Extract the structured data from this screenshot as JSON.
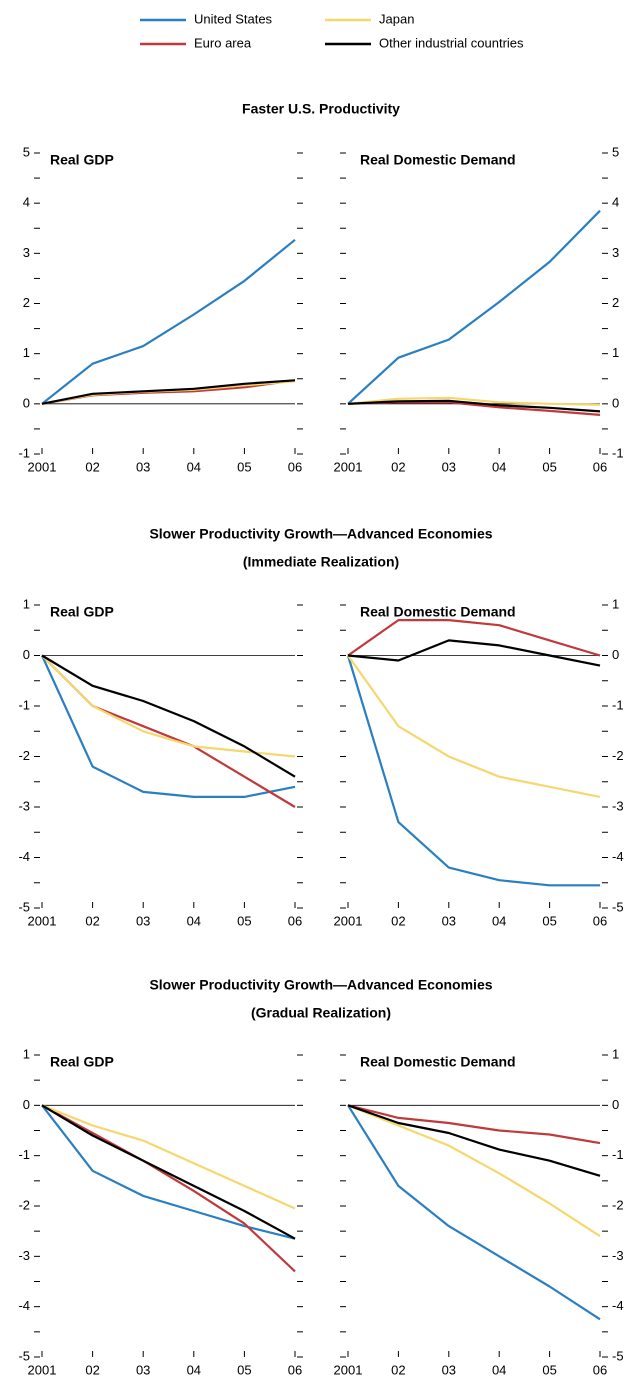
{
  "sections": [
    [
      "Faster U.S. Productivity"
    ],
    [
      "Slower Productivity Growth—Advanced Economies",
      "(Immediate Realization)"
    ],
    [
      "Slower Productivity Growth—Advanced Economies",
      "(Gradual Realization)"
    ]
  ],
  "chart_data": [
    {
      "type": "line",
      "title": "Real GDP",
      "ytick_side": "left",
      "categories": [
        "2001",
        "02",
        "03",
        "04",
        "05",
        "06"
      ],
      "ylim": [
        -1,
        5
      ],
      "yticks": [
        -1,
        0,
        1,
        2,
        3,
        4,
        5
      ],
      "minor_yticks": [
        -0.5,
        0.5,
        1.5,
        2.5,
        3.5,
        4.5
      ],
      "series": [
        {
          "name": "United States",
          "color": "#2a7fc1",
          "values": [
            0,
            0.8,
            1.15,
            1.78,
            2.45,
            3.27
          ]
        },
        {
          "name": "Euro area",
          "color": "#c0393b",
          "values": [
            0,
            0.17,
            0.22,
            0.25,
            0.33,
            0.47
          ]
        },
        {
          "name": "Japan",
          "color": "#f5d76e",
          "values": [
            0,
            0.18,
            0.24,
            0.28,
            0.37,
            0.45
          ]
        },
        {
          "name": "Other industrial countries",
          "color": "#000000",
          "values": [
            0,
            0.2,
            0.25,
            0.3,
            0.4,
            0.47
          ]
        }
      ]
    },
    {
      "type": "line",
      "title": "Real Domestic Demand",
      "ytick_side": "right",
      "categories": [
        "2001",
        "02",
        "03",
        "04",
        "05",
        "06"
      ],
      "ylim": [
        -1,
        5
      ],
      "yticks": [
        -1,
        0,
        1,
        2,
        3,
        4,
        5
      ],
      "minor_yticks": [
        -0.5,
        0.5,
        1.5,
        2.5,
        3.5,
        4.5
      ],
      "series": [
        {
          "name": "United States",
          "color": "#2a7fc1",
          "values": [
            0,
            0.92,
            1.28,
            2.03,
            2.83,
            3.85
          ]
        },
        {
          "name": "Euro area",
          "color": "#c0393b",
          "values": [
            0,
            0.03,
            0.03,
            -0.07,
            -0.14,
            -0.22
          ]
        },
        {
          "name": "Japan",
          "color": "#f5d76e",
          "values": [
            0,
            0.1,
            0.12,
            0.03,
            0,
            -0.02
          ]
        },
        {
          "name": "Other industrial countries",
          "color": "#000000",
          "values": [
            0,
            0.05,
            0.06,
            -0.03,
            -0.08,
            -0.15
          ]
        }
      ]
    },
    {
      "type": "line",
      "title": "Real GDP",
      "ytick_side": "left",
      "categories": [
        "2001",
        "02",
        "03",
        "04",
        "05",
        "06"
      ],
      "ylim": [
        -5,
        1
      ],
      "yticks": [
        -5,
        -4,
        -3,
        -2,
        -1,
        0,
        1
      ],
      "minor_yticks": [
        -4.5,
        -3.5,
        -2.5,
        -1.5,
        -0.5,
        0.5
      ],
      "series": [
        {
          "name": "United States",
          "color": "#2a7fc1",
          "values": [
            0,
            -2.2,
            -2.7,
            -2.8,
            -2.8,
            -2.6
          ]
        },
        {
          "name": "Euro area",
          "color": "#c0393b",
          "values": [
            0,
            -1,
            -1.4,
            -1.8,
            -2.4,
            -3
          ]
        },
        {
          "name": "Japan",
          "color": "#f5d76e",
          "values": [
            0,
            -1,
            -1.5,
            -1.8,
            -1.9,
            -2
          ]
        },
        {
          "name": "Other industrial countries",
          "color": "#000000",
          "values": [
            0,
            -0.6,
            -0.9,
            -1.3,
            -1.8,
            -2.4
          ]
        }
      ]
    },
    {
      "type": "line",
      "title": "Real Domestic Demand",
      "ytick_side": "right",
      "categories": [
        "2001",
        "02",
        "03",
        "04",
        "05",
        "06"
      ],
      "ylim": [
        -5,
        1
      ],
      "yticks": [
        -5,
        -4,
        -3,
        -2,
        -1,
        0,
        1
      ],
      "minor_yticks": [
        -4.5,
        -3.5,
        -2.5,
        -1.5,
        -0.5,
        0.5
      ],
      "series": [
        {
          "name": "United States",
          "color": "#2a7fc1",
          "values": [
            0,
            -3.3,
            -4.2,
            -4.45,
            -4.55,
            -4.55
          ]
        },
        {
          "name": "Euro area",
          "color": "#c0393b",
          "values": [
            0,
            0.7,
            0.7,
            0.6,
            0.3,
            0
          ]
        },
        {
          "name": "Japan",
          "color": "#f5d76e",
          "values": [
            0,
            -1.4,
            -2,
            -2.4,
            -2.6,
            -2.8
          ]
        },
        {
          "name": "Other industrial countries",
          "color": "#000000",
          "values": [
            0,
            -0.1,
            0.3,
            0.2,
            0,
            -0.2
          ]
        }
      ]
    },
    {
      "type": "line",
      "title": "Real GDP",
      "ytick_side": "left",
      "categories": [
        "2001",
        "02",
        "03",
        "04",
        "05",
        "06"
      ],
      "ylim": [
        -5,
        1
      ],
      "yticks": [
        -5,
        -4,
        -3,
        -2,
        -1,
        0,
        1
      ],
      "minor_yticks": [
        -4.5,
        -3.5,
        -2.5,
        -1.5,
        -0.5,
        0.5
      ],
      "series": [
        {
          "name": "United States",
          "color": "#2a7fc1",
          "values": [
            0,
            -1.3,
            -1.8,
            -2.1,
            -2.4,
            -2.65
          ]
        },
        {
          "name": "Euro area",
          "color": "#c0393b",
          "values": [
            0,
            -0.55,
            -1.1,
            -1.7,
            -2.35,
            -3.3
          ]
        },
        {
          "name": "Japan",
          "color": "#f5d76e",
          "values": [
            0,
            -0.4,
            -0.7,
            -1.15,
            -1.6,
            -2.05
          ]
        },
        {
          "name": "Other industrial countries",
          "color": "#000000",
          "values": [
            0,
            -0.6,
            -1.1,
            -1.6,
            -2.1,
            -2.65
          ]
        }
      ]
    },
    {
      "type": "line",
      "title": "Real Domestic Demand",
      "ytick_side": "right",
      "categories": [
        "2001",
        "02",
        "03",
        "04",
        "05",
        "06"
      ],
      "ylim": [
        -5,
        1
      ],
      "yticks": [
        -5,
        -4,
        -3,
        -2,
        -1,
        0,
        1
      ],
      "minor_yticks": [
        -4.5,
        -3.5,
        -2.5,
        -1.5,
        -0.5,
        0.5
      ],
      "series": [
        {
          "name": "United States",
          "color": "#2a7fc1",
          "values": [
            0,
            -1.6,
            -2.4,
            -3,
            -3.6,
            -4.25
          ]
        },
        {
          "name": "Euro area",
          "color": "#c0393b",
          "values": [
            0,
            -0.25,
            -0.35,
            -0.5,
            -0.58,
            -0.75
          ]
        },
        {
          "name": "Japan",
          "color": "#f5d76e",
          "values": [
            0,
            -0.4,
            -0.8,
            -1.35,
            -1.95,
            -2.6
          ]
        },
        {
          "name": "Other industrial countries",
          "color": "#000000",
          "values": [
            0,
            -0.35,
            -0.55,
            -0.88,
            -1.1,
            -1.4
          ]
        }
      ]
    }
  ]
}
